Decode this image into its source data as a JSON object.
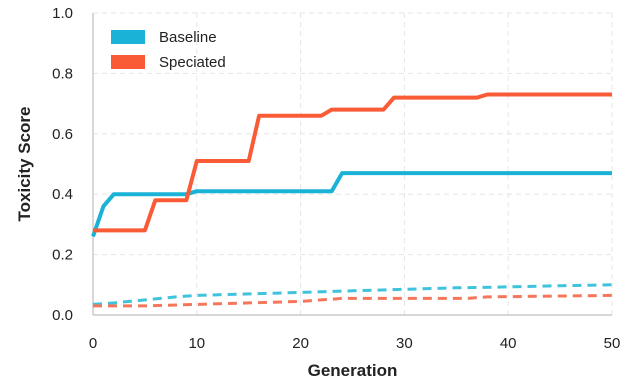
{
  "chart_data": {
    "type": "line",
    "xlabel": "Generation",
    "ylabel": "Toxicity Score",
    "xlim": [
      0,
      50
    ],
    "ylim": [
      0,
      1.0
    ],
    "x_ticks": [
      0,
      10,
      20,
      30,
      40,
      50
    ],
    "y_ticks": [
      0.0,
      0.2,
      0.4,
      0.6,
      0.8,
      1.0
    ],
    "y_tick_labels": [
      "0.0",
      "0.2",
      "0.4",
      "0.6",
      "0.8",
      "1.0"
    ],
    "grid": true,
    "legend_position": "top-left",
    "series": [
      {
        "name": "Baseline",
        "line_style": "solid",
        "color": "#1ab2d6",
        "x": [
          0,
          1,
          2,
          9,
          10,
          23,
          24,
          50
        ],
        "values": [
          0.26,
          0.36,
          0.4,
          0.4,
          0.41,
          0.41,
          0.47,
          0.47
        ]
      },
      {
        "name": "Speciated",
        "line_style": "solid",
        "color": "#fa5b37",
        "x": [
          0,
          5,
          6,
          9,
          10,
          15,
          16,
          22,
          23,
          28,
          29,
          37,
          38,
          50
        ],
        "values": [
          0.28,
          0.28,
          0.38,
          0.38,
          0.51,
          0.51,
          0.66,
          0.66,
          0.68,
          0.68,
          0.72,
          0.72,
          0.73,
          0.73
        ]
      },
      {
        "name": "",
        "line_style": "dashed",
        "color": "#3fc3dd",
        "x": [
          0,
          2,
          5,
          8,
          10,
          15,
          20,
          25,
          30,
          35,
          40,
          45,
          50
        ],
        "values": [
          0.035,
          0.04,
          0.05,
          0.06,
          0.065,
          0.07,
          0.075,
          0.08,
          0.085,
          0.09,
          0.093,
          0.097,
          0.1
        ]
      },
      {
        "name": "",
        "line_style": "dashed",
        "color": "#f5775b",
        "x": [
          0,
          5,
          10,
          15,
          20,
          24,
          30,
          36,
          38,
          50
        ],
        "values": [
          0.03,
          0.03,
          0.035,
          0.04,
          0.045,
          0.055,
          0.055,
          0.055,
          0.06,
          0.065
        ]
      }
    ]
  }
}
